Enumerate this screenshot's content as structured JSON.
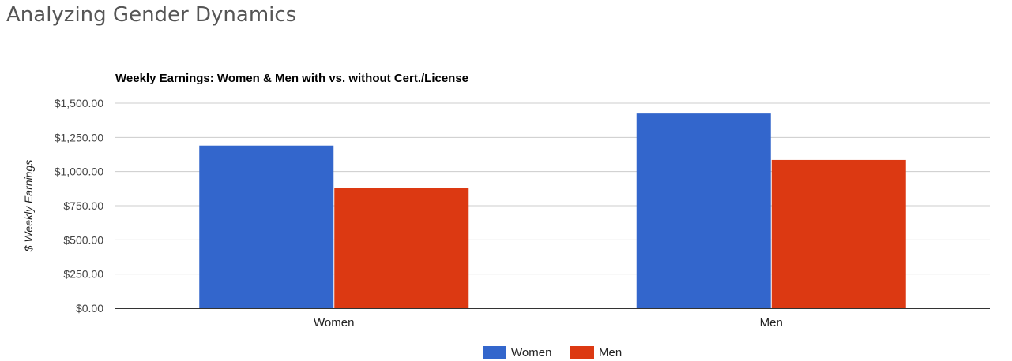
{
  "header": {
    "title": "Analyzing Gender Dynamics"
  },
  "chart_data": {
    "type": "bar",
    "title": "Weekly Earnings: Women & Men with vs. without Cert./License",
    "xlabel": "",
    "ylabel": "$ Weekly Earnings",
    "categories": [
      "Women",
      "Men"
    ],
    "series": [
      {
        "name": "Women",
        "color": "#3366cc",
        "values": [
          1190,
          1430
        ]
      },
      {
        "name": "Men",
        "color": "#dc3912",
        "values": [
          880,
          1085
        ]
      }
    ],
    "ylim": [
      0,
      1500
    ],
    "yticks": [
      0,
      250,
      500,
      750,
      1000,
      1250,
      1500
    ],
    "ytick_labels": [
      "$0.00",
      "$250.00",
      "$500.00",
      "$750.00",
      "$1,000.00",
      "$1,250.00",
      "$1,500.00"
    ],
    "grid": true,
    "legend_position": "bottom"
  }
}
